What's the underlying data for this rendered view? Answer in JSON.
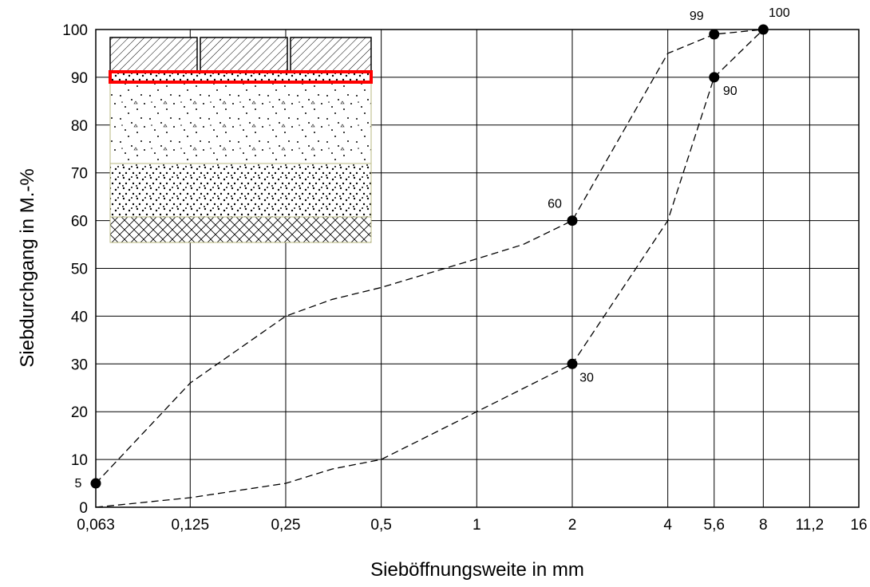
{
  "chart_data": {
    "type": "line",
    "x_label": "Sieböffnungsweite in mm",
    "y_label": "Siebdurchgang in M.-%",
    "xscale": "log",
    "xlim": [
      0.063,
      16
    ],
    "xticks": [
      {
        "value": 0.063,
        "label": "0,063"
      },
      {
        "value": 0.125,
        "label": "0,125"
      },
      {
        "value": 0.25,
        "label": "0,25"
      },
      {
        "value": 0.5,
        "label": "0,5"
      },
      1,
      2,
      4,
      {
        "value": 5.6,
        "label": "5,6"
      },
      8,
      {
        "value": 11.2,
        "label": "11,2"
      },
      16
    ],
    "ylim": [
      0,
      100
    ],
    "yticks": [
      0,
      10,
      20,
      30,
      40,
      50,
      60,
      70,
      80,
      90,
      100
    ],
    "grid": true,
    "series": [
      {
        "color": "#000000",
        "x": [
          0.063,
          0.125,
          0.25,
          0.35,
          0.5,
          1,
          1.4,
          2,
          4,
          5.6,
          8
        ],
        "values": [
          5,
          26,
          40,
          43.5,
          46,
          52,
          55,
          60,
          95,
          99,
          100
        ]
      },
      {
        "color": "#000000",
        "x": [
          0.063,
          0.125,
          0.25,
          0.35,
          0.5,
          1,
          2,
          4,
          5.6,
          8
        ],
        "values": [
          0,
          2,
          5,
          8,
          10,
          20,
          30,
          60,
          90,
          100
        ]
      }
    ],
    "points": [
      {
        "x": 0.063,
        "y": 5
      },
      {
        "x": 2,
        "y": 60
      },
      {
        "x": 2,
        "y": 30
      },
      {
        "x": 5.6,
        "y": 99
      },
      {
        "x": 5.6,
        "y": 90
      },
      {
        "x": 8,
        "y": 100
      }
    ]
  }
}
